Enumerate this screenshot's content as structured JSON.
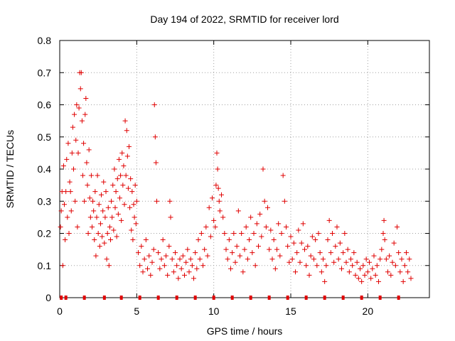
{
  "chart_data": {
    "type": "scatter",
    "title": "Day 194 of 2022, SRMTID for receiver lord",
    "xlabel": "GPS time / hours",
    "ylabel": "SRMTID / TECUs",
    "xlim": [
      0,
      24
    ],
    "ylim": [
      0,
      0.8
    ],
    "x_ticks": [
      0,
      5,
      10,
      15,
      20
    ],
    "x_tick_labels": [
      "0",
      "5",
      "10",
      "15",
      "20"
    ],
    "y_ticks": [
      0,
      0.1,
      0.2,
      0.3,
      0.4,
      0.5,
      0.6,
      0.7,
      0.8
    ],
    "y_tick_labels": [
      "0",
      "0.1",
      "0.2",
      "0.3",
      "0.4",
      "0.5",
      "0.6",
      "0.7",
      "0.8"
    ],
    "grid": true,
    "marker": "plus",
    "color": "#e00000",
    "baseline_markers_x": [
      0.1,
      0.4,
      1.6,
      2.9,
      4.0,
      5.2,
      6.4,
      7.6,
      8.8,
      10.0,
      11.2,
      12.4,
      13.6,
      14.8,
      16.0,
      17.2,
      18.4,
      19.6,
      20.8,
      22.0
    ],
    "series": [
      {
        "name": "SRMTID",
        "points": [
          [
            0.05,
            0.22
          ],
          [
            0.1,
            0.27
          ],
          [
            0.15,
            0.33
          ],
          [
            0.2,
            0.1
          ],
          [
            0.25,
            0.41
          ],
          [
            0.3,
            0.29
          ],
          [
            0.35,
            0.18
          ],
          [
            0.4,
            0.33
          ],
          [
            0.45,
            0.43
          ],
          [
            0.5,
            0.25
          ],
          [
            0.55,
            0.48
          ],
          [
            0.6,
            0.2
          ],
          [
            0.65,
            0.36
          ],
          [
            0.7,
            0.33
          ],
          [
            0.75,
            0.27
          ],
          [
            0.8,
            0.45
          ],
          [
            0.85,
            0.53
          ],
          [
            0.9,
            0.4
          ],
          [
            0.95,
            0.57
          ],
          [
            1.0,
            0.3
          ],
          [
            1.05,
            0.49
          ],
          [
            1.1,
            0.6
          ],
          [
            1.15,
            0.22
          ],
          [
            1.2,
            0.45
          ],
          [
            1.25,
            0.59
          ],
          [
            1.3,
            0.7
          ],
          [
            1.35,
            0.65
          ],
          [
            1.4,
            0.7
          ],
          [
            1.45,
            0.55
          ],
          [
            1.5,
            0.38
          ],
          [
            1.55,
            0.48
          ],
          [
            1.6,
            0.3
          ],
          [
            1.65,
            0.57
          ],
          [
            1.7,
            0.62
          ],
          [
            1.75,
            0.42
          ],
          [
            1.8,
            0.35
          ],
          [
            1.85,
            0.2
          ],
          [
            1.9,
            0.46
          ],
          [
            1.95,
            0.31
          ],
          [
            2.0,
            0.25
          ],
          [
            2.05,
            0.38
          ],
          [
            2.1,
            0.22
          ],
          [
            2.15,
            0.3
          ],
          [
            2.2,
            0.27
          ],
          [
            2.25,
            0.18
          ],
          [
            2.3,
            0.33
          ],
          [
            2.35,
            0.13
          ],
          [
            2.4,
            0.25
          ],
          [
            2.45,
            0.38
          ],
          [
            2.5,
            0.2
          ],
          [
            2.55,
            0.29
          ],
          [
            2.6,
            0.16
          ],
          [
            2.65,
            0.23
          ],
          [
            2.7,
            0.32
          ],
          [
            2.75,
            0.19
          ],
          [
            2.8,
            0.27
          ],
          [
            2.85,
            0.36
          ],
          [
            2.9,
            0.17
          ],
          [
            2.95,
            0.25
          ],
          [
            3.0,
            0.33
          ],
          [
            3.05,
            0.12
          ],
          [
            3.1,
            0.2
          ],
          [
            3.15,
            0.28
          ],
          [
            3.2,
            0.1
          ],
          [
            3.25,
            0.22
          ],
          [
            3.3,
            0.18
          ],
          [
            3.35,
            0.3
          ],
          [
            3.4,
            0.25
          ],
          [
            3.45,
            0.35
          ],
          [
            3.5,
            0.21
          ],
          [
            3.55,
            0.4
          ],
          [
            3.6,
            0.28
          ],
          [
            3.65,
            0.33
          ],
          [
            3.7,
            0.19
          ],
          [
            3.75,
            0.37
          ],
          [
            3.8,
            0.26
          ],
          [
            3.85,
            0.43
          ],
          [
            3.9,
            0.31
          ],
          [
            3.95,
            0.38
          ],
          [
            4.0,
            0.24
          ],
          [
            4.05,
            0.45
          ],
          [
            4.1,
            0.35
          ],
          [
            4.15,
            0.41
          ],
          [
            4.2,
            0.29
          ],
          [
            4.25,
            0.55
          ],
          [
            4.3,
            0.38
          ],
          [
            4.35,
            0.52
          ],
          [
            4.4,
            0.44
          ],
          [
            4.45,
            0.34
          ],
          [
            4.5,
            0.47
          ],
          [
            4.55,
            0.28
          ],
          [
            4.6,
            0.37
          ],
          [
            4.65,
            0.21
          ],
          [
            4.7,
            0.33
          ],
          [
            4.75,
            0.18
          ],
          [
            4.8,
            0.29
          ],
          [
            4.85,
            0.25
          ],
          [
            4.9,
            0.35
          ],
          [
            4.95,
            0.23
          ],
          [
            5.0,
            0.3
          ],
          [
            5.1,
            0.14
          ],
          [
            5.2,
            0.1
          ],
          [
            5.3,
            0.16
          ],
          [
            5.4,
            0.08
          ],
          [
            5.5,
            0.12
          ],
          [
            5.6,
            0.18
          ],
          [
            5.7,
            0.09
          ],
          [
            5.8,
            0.13
          ],
          [
            5.9,
            0.07
          ],
          [
            6.0,
            0.11
          ],
          [
            6.1,
            0.15
          ],
          [
            6.15,
            0.6
          ],
          [
            6.2,
            0.5
          ],
          [
            6.25,
            0.42
          ],
          [
            6.3,
            0.3
          ],
          [
            6.4,
            0.14
          ],
          [
            6.5,
            0.09
          ],
          [
            6.6,
            0.12
          ],
          [
            6.7,
            0.18
          ],
          [
            6.8,
            0.1
          ],
          [
            6.9,
            0.13
          ],
          [
            7.0,
            0.07
          ],
          [
            7.1,
            0.16
          ],
          [
            7.15,
            0.3
          ],
          [
            7.2,
            0.25
          ],
          [
            7.3,
            0.12
          ],
          [
            7.4,
            0.08
          ],
          [
            7.5,
            0.14
          ],
          [
            7.6,
            0.1
          ],
          [
            7.7,
            0.06
          ],
          [
            7.8,
            0.12
          ],
          [
            7.9,
            0.09
          ],
          [
            8.0,
            0.13
          ],
          [
            8.1,
            0.07
          ],
          [
            8.2,
            0.11
          ],
          [
            8.3,
            0.15
          ],
          [
            8.4,
            0.08
          ],
          [
            8.5,
            0.12
          ],
          [
            8.6,
            0.1
          ],
          [
            8.7,
            0.06
          ],
          [
            8.8,
            0.14
          ],
          [
            8.9,
            0.09
          ],
          [
            9.0,
            0.18
          ],
          [
            9.1,
            0.12
          ],
          [
            9.2,
            0.2
          ],
          [
            9.3,
            0.1
          ],
          [
            9.4,
            0.15
          ],
          [
            9.5,
            0.22
          ],
          [
            9.6,
            0.13
          ],
          [
            9.7,
            0.28
          ],
          [
            9.8,
            0.19
          ],
          [
            9.9,
            0.31
          ],
          [
            10.0,
            0.24
          ],
          [
            10.1,
            0.22
          ],
          [
            10.15,
            0.35
          ],
          [
            10.2,
            0.45
          ],
          [
            10.25,
            0.4
          ],
          [
            10.3,
            0.34
          ],
          [
            10.35,
            0.3
          ],
          [
            10.4,
            0.27
          ],
          [
            10.5,
            0.32
          ],
          [
            10.6,
            0.25
          ],
          [
            10.7,
            0.2
          ],
          [
            10.8,
            0.15
          ],
          [
            10.9,
            0.12
          ],
          [
            11.0,
            0.18
          ],
          [
            11.1,
            0.09
          ],
          [
            11.2,
            0.14
          ],
          [
            11.3,
            0.2
          ],
          [
            11.4,
            0.11
          ],
          [
            11.5,
            0.16
          ],
          [
            11.6,
            0.27
          ],
          [
            11.7,
            0.13
          ],
          [
            11.8,
            0.2
          ],
          [
            11.9,
            0.08
          ],
          [
            12.0,
            0.15
          ],
          [
            12.1,
            0.22
          ],
          [
            12.2,
            0.12
          ],
          [
            12.3,
            0.18
          ],
          [
            12.4,
            0.25
          ],
          [
            12.5,
            0.14
          ],
          [
            12.6,
            0.2
          ],
          [
            12.7,
            0.1
          ],
          [
            12.8,
            0.23
          ],
          [
            12.9,
            0.16
          ],
          [
            13.0,
            0.26
          ],
          [
            13.1,
            0.19
          ],
          [
            13.2,
            0.4
          ],
          [
            13.3,
            0.3
          ],
          [
            13.4,
            0.22
          ],
          [
            13.5,
            0.28
          ],
          [
            13.6,
            0.15
          ],
          [
            13.7,
            0.21
          ],
          [
            13.8,
            0.12
          ],
          [
            13.9,
            0.18
          ],
          [
            14.0,
            0.09
          ],
          [
            14.1,
            0.15
          ],
          [
            14.2,
            0.23
          ],
          [
            14.3,
            0.13
          ],
          [
            14.4,
            0.2
          ],
          [
            14.5,
            0.38
          ],
          [
            14.6,
            0.3
          ],
          [
            14.7,
            0.22
          ],
          [
            14.8,
            0.16
          ],
          [
            14.9,
            0.11
          ],
          [
            15.0,
            0.19
          ],
          [
            15.1,
            0.12
          ],
          [
            15.2,
            0.17
          ],
          [
            15.3,
            0.08
          ],
          [
            15.4,
            0.14
          ],
          [
            15.5,
            0.21
          ],
          [
            15.6,
            0.11
          ],
          [
            15.7,
            0.17
          ],
          [
            15.8,
            0.23
          ],
          [
            15.9,
            0.15
          ],
          [
            16.0,
            0.1
          ],
          [
            16.1,
            0.16
          ],
          [
            16.2,
            0.07
          ],
          [
            16.3,
            0.13
          ],
          [
            16.4,
            0.19
          ],
          [
            16.5,
            0.12
          ],
          [
            16.6,
            0.18
          ],
          [
            16.7,
            0.1
          ],
          [
            16.8,
            0.2
          ],
          [
            16.9,
            0.14
          ],
          [
            17.0,
            0.08
          ],
          [
            17.1,
            0.12
          ],
          [
            17.2,
            0.05
          ],
          [
            17.3,
            0.1
          ],
          [
            17.4,
            0.18
          ],
          [
            17.5,
            0.24
          ],
          [
            17.6,
            0.14
          ],
          [
            17.7,
            0.2
          ],
          [
            17.8,
            0.11
          ],
          [
            17.9,
            0.16
          ],
          [
            18.0,
            0.22
          ],
          [
            18.1,
            0.12
          ],
          [
            18.2,
            0.17
          ],
          [
            18.3,
            0.09
          ],
          [
            18.4,
            0.14
          ],
          [
            18.5,
            0.2
          ],
          [
            18.6,
            0.11
          ],
          [
            18.7,
            0.15
          ],
          [
            18.8,
            0.08
          ],
          [
            18.9,
            0.12
          ],
          [
            19.0,
            0.1
          ],
          [
            19.1,
            0.14
          ],
          [
            19.2,
            0.07
          ],
          [
            19.3,
            0.11
          ],
          [
            19.4,
            0.06
          ],
          [
            19.5,
            0.09
          ],
          [
            19.6,
            0.05
          ],
          [
            19.7,
            0.1
          ],
          [
            19.8,
            0.07
          ],
          [
            19.9,
            0.12
          ],
          [
            20.0,
            0.08
          ],
          [
            20.1,
            0.11
          ],
          [
            20.2,
            0.06
          ],
          [
            20.3,
            0.09
          ],
          [
            20.4,
            0.13
          ],
          [
            20.5,
            0.07
          ],
          [
            20.6,
            0.1
          ],
          [
            20.7,
            0.05
          ],
          [
            20.8,
            0.12
          ],
          [
            20.9,
            0.15
          ],
          [
            21.0,
            0.2
          ],
          [
            21.05,
            0.24
          ],
          [
            21.1,
            0.18
          ],
          [
            21.2,
            0.12
          ],
          [
            21.3,
            0.08
          ],
          [
            21.4,
            0.13
          ],
          [
            21.5,
            0.07
          ],
          [
            21.6,
            0.11
          ],
          [
            21.7,
            0.17
          ],
          [
            21.8,
            0.1
          ],
          [
            21.9,
            0.22
          ],
          [
            22.0,
            0.14
          ],
          [
            22.1,
            0.08
          ],
          [
            22.2,
            0.12
          ],
          [
            22.3,
            0.05
          ],
          [
            22.4,
            0.1
          ],
          [
            22.5,
            0.14
          ],
          [
            22.6,
            0.08
          ],
          [
            22.7,
            0.12
          ],
          [
            22.8,
            0.06
          ]
        ]
      }
    ]
  }
}
